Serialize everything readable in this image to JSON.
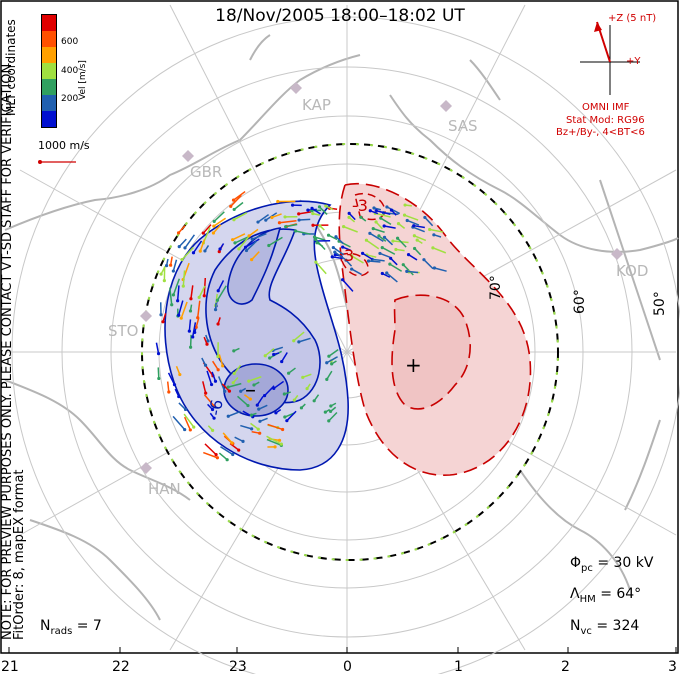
{
  "title": "18/Nov/2005 18:00–18:02 UT",
  "side_note": {
    "line1": "NOTE: FOR PREVIEW PURPOSES ONLY. PLEASE CONTACT VT-SD STAFF FOR VERIFICATION.",
    "line2": "FitOrder: 8, mapEX format"
  },
  "coords_label": "MLT coordinates",
  "colorbar": {
    "title": "Vel [m/s]",
    "ticks": [
      "600",
      "400",
      "200"
    ],
    "colors": [
      "#e00000",
      "#ff5000",
      "#ffa000",
      "#a0e040",
      "#30a060",
      "#2060b0",
      "#0010d0"
    ]
  },
  "vector_scale": "1000 m/s",
  "imf": {
    "z_label": "+Z (5 nT)",
    "y_label": "+Y",
    "source": "OMNI IMF",
    "stat_mod": "Stat Mod: RG96",
    "condition": "Bz+/By-, 4<BT<6"
  },
  "stations": [
    "KAP",
    "SAS",
    "GBR",
    "KOD",
    "STO",
    "HAN"
  ],
  "lat_labels": [
    "70°",
    "60°",
    "50°"
  ],
  "contour_labels": [
    "-3",
    "3",
    "-6",
    "-"
  ],
  "potential_marks": {
    "max": "+",
    "min": "–"
  },
  "stats": {
    "phi_pc": "= 30 kV",
    "lambda_hm": "= 64°",
    "n_vc": "= 324",
    "n_rads": "= 7"
  },
  "mlt_ticks": [
    "21",
    "22",
    "23",
    "0",
    "1",
    "2",
    "3"
  ],
  "colors": {
    "neg_fill": "#d4d6ee",
    "pos_fill": "#f5d4d4",
    "neg_line": "#0018b0",
    "pos_line": "#c80000",
    "map": "#b8b8b8",
    "imf": "#d00000"
  }
}
